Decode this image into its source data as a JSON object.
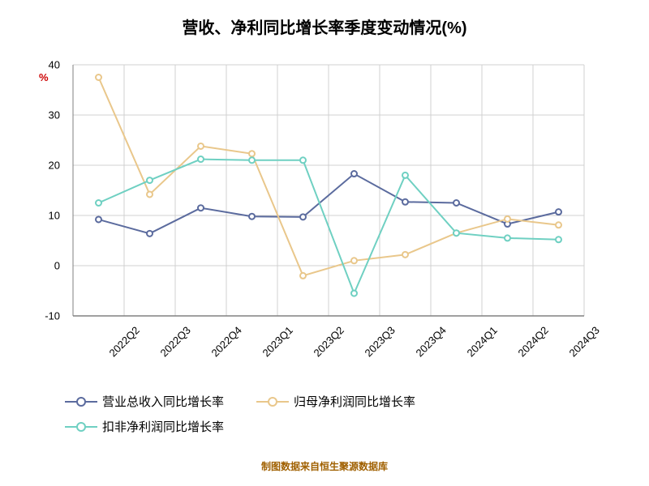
{
  "title": "营收、净利同比增长率季度变动情况(%)",
  "title_fontsize": 20,
  "ylabel": "%",
  "ylabel_color": "#cc0000",
  "footer": "制图数据来自恒生聚源数据库",
  "footer_color": "#a06000",
  "chart": {
    "type": "line",
    "background": "#ffffff",
    "grid_color": "#d0d0d0",
    "axis_color": "#808080",
    "xcategories": [
      "2022Q2",
      "2022Q3",
      "2022Q4",
      "2023Q1",
      "2023Q2",
      "2023Q3",
      "2023Q4",
      "2024Q1",
      "2024Q2",
      "2024Q3"
    ],
    "ylim": [
      -10,
      40
    ],
    "yticks": [
      -10,
      0,
      10,
      20,
      30,
      40
    ],
    "tick_fontsize": 13,
    "xtick_rotation": -45,
    "line_width": 2,
    "marker_size": 7,
    "marker_fill": "#ffffff",
    "series": [
      {
        "name": "营业总收入同比增长率",
        "color": "#5b6b9e",
        "values": [
          9.2,
          6.4,
          11.5,
          9.8,
          9.7,
          18.3,
          12.7,
          12.5,
          8.3,
          10.7
        ]
      },
      {
        "name": "归母净利润同比增长率",
        "color": "#e9c78b",
        "values": [
          37.5,
          14.2,
          23.8,
          22.3,
          -2.0,
          1.0,
          2.2,
          6.5,
          9.3,
          8.1
        ]
      },
      {
        "name": "扣非净利润同比增长率",
        "color": "#6fd0c2",
        "values": [
          12.5,
          17.0,
          21.2,
          21.0,
          21.0,
          -5.5,
          18.0,
          6.5,
          5.5,
          5.2
        ]
      }
    ]
  }
}
